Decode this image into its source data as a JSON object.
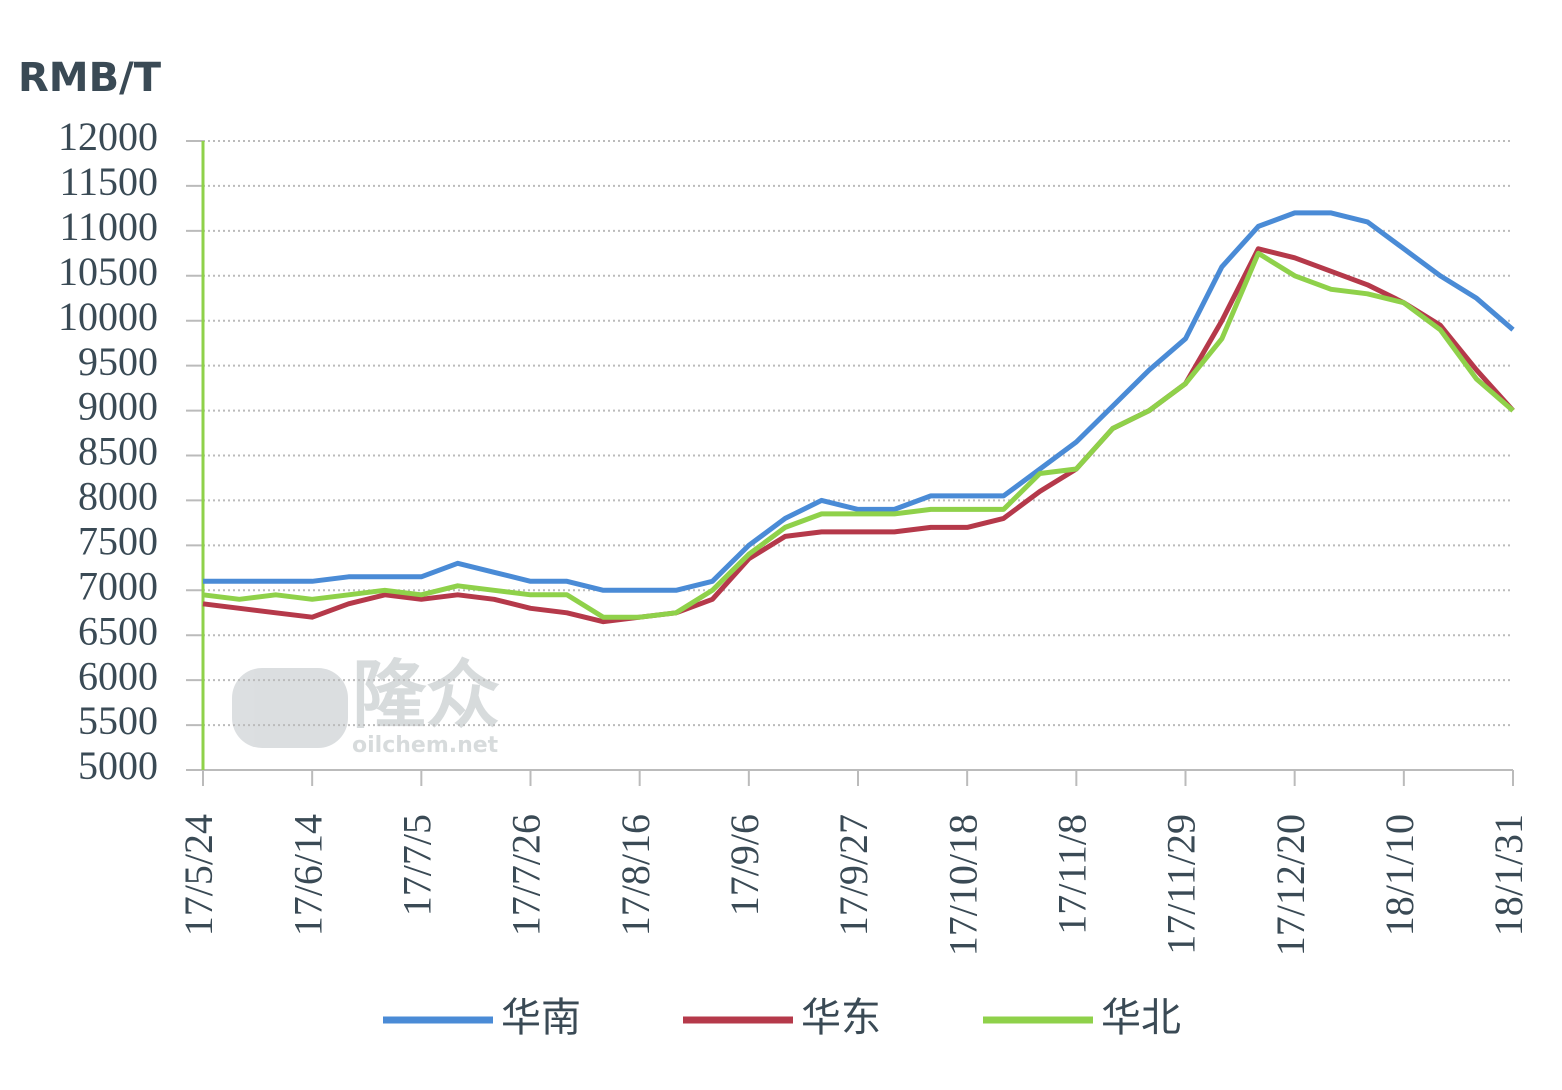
{
  "chart_data": {
    "type": "line",
    "y_axis_label": "RMB/T",
    "watermark": {
      "logo": "隆众",
      "site": "oilchem.net"
    },
    "categories": [
      "17/5/24",
      null,
      null,
      "17/6/14",
      null,
      null,
      "17/7/5",
      null,
      null,
      "17/7/26",
      null,
      null,
      "17/8/16",
      null,
      null,
      "17/9/6",
      null,
      null,
      "17/9/27",
      null,
      null,
      "17/10/18",
      null,
      null,
      "17/11/8",
      null,
      null,
      "17/11/29",
      null,
      null,
      "17/12/20",
      null,
      null,
      "18/1/10",
      null,
      null,
      "18/1/31"
    ],
    "series": [
      {
        "name": "华南",
        "color": "#4a8bd6",
        "values": [
          7100,
          7100,
          7100,
          7100,
          7150,
          7150,
          7150,
          7300,
          7200,
          7100,
          7100,
          7000,
          7000,
          7000,
          7100,
          7500,
          7800,
          8000,
          7900,
          7900,
          8050,
          8050,
          8050,
          8350,
          8650,
          9050,
          9450,
          9800,
          10600,
          11050,
          11200,
          11200,
          11100,
          10800,
          10500,
          10250,
          9900
        ]
      },
      {
        "name": "华东",
        "color": "#b5394a",
        "values": [
          6850,
          6800,
          6750,
          6700,
          6850,
          6950,
          6900,
          6950,
          6900,
          6800,
          6750,
          6650,
          6700,
          6750,
          6900,
          7350,
          7600,
          7650,
          7650,
          7650,
          7700,
          7700,
          7800,
          8100,
          8350,
          8800,
          9000,
          9300,
          10000,
          10800,
          10700,
          10550,
          10400,
          10200,
          9950,
          9450,
          9000
        ]
      },
      {
        "name": "华北",
        "color": "#8fd14a",
        "values": [
          6950,
          6900,
          6950,
          6900,
          6950,
          7000,
          6950,
          7050,
          7000,
          6950,
          6950,
          6700,
          6700,
          6750,
          7000,
          7400,
          7700,
          7850,
          7850,
          7850,
          7900,
          7900,
          7900,
          8300,
          8350,
          8800,
          9000,
          9300,
          9800,
          10750,
          10500,
          10350,
          10300,
          10200,
          9900,
          9350,
          9000
        ]
      }
    ],
    "ylim": [
      5000,
      12000
    ],
    "yticks": [
      5000,
      5500,
      6000,
      6500,
      7000,
      7500,
      8000,
      8500,
      9000,
      9500,
      10000,
      10500,
      11000,
      11500,
      12000
    ],
    "grid": true
  }
}
